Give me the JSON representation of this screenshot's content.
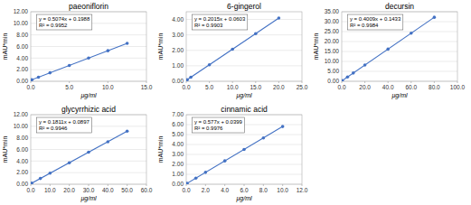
{
  "chart_data": [
    {
      "type": "scatter",
      "title": "paeoniflorin",
      "x_label": "μg/ml",
      "y_label": "mAU*min",
      "annotations": [
        "y = 0.5074x + 0.1988",
        "R² = 0.9952"
      ],
      "xlim": [
        0.0,
        15.0
      ],
      "ylim": [
        0.0,
        12.0
      ],
      "xticks": [
        {
          "value": 0.0,
          "label": "0.0"
        },
        {
          "value": 5.0,
          "label": "5.0"
        },
        {
          "value": 10.0,
          "label": "10.0"
        },
        {
          "value": 15.0,
          "label": "15.0"
        }
      ],
      "yticks": [
        {
          "value": 0.0,
          "label": "0.00"
        },
        {
          "value": 2.0,
          "label": "2.00"
        },
        {
          "value": 4.0,
          "label": "4.00"
        },
        {
          "value": 6.0,
          "label": "6.00"
        },
        {
          "value": 8.0,
          "label": "8.00"
        },
        {
          "value": 10.0,
          "label": "10.00"
        },
        {
          "value": 12.0,
          "label": "12.00"
        }
      ],
      "grid": true,
      "series": [
        {
          "type": "scatter",
          "marker": "circle",
          "color": "#4472c4",
          "x": [
            0.15,
            1.0,
            2.5,
            5.0,
            7.5,
            10.0,
            12.5
          ],
          "values": [
            0.27491,
            0.7062,
            1.4673,
            2.7358,
            4.0043,
            5.2728,
            6.5413
          ]
        },
        {
          "type": "line",
          "line_style": "solid",
          "color": "#4472c4",
          "x": [
            0.0,
            12.5
          ],
          "values": [
            0.1988,
            6.5413
          ]
        }
      ]
    },
    {
      "type": "scatter",
      "title": "6-gingerol",
      "x_label": "μg/ml",
      "y_label": "mAU*min",
      "annotations": [
        "y = 0.2015x + 0.0603",
        "R² = 0.9903"
      ],
      "xlim": [
        0.0,
        25.0
      ],
      "ylim": [
        0.0,
        4.5
      ],
      "xticks": [
        {
          "value": 0.0,
          "label": "0.0"
        },
        {
          "value": 5.0,
          "label": "5.0"
        },
        {
          "value": 10.0,
          "label": "10.0"
        },
        {
          "value": 15.0,
          "label": "15.0"
        },
        {
          "value": 20.0,
          "label": "20.0"
        },
        {
          "value": 25.0,
          "label": "25.0"
        }
      ],
      "yticks": [
        {
          "value": 0.0,
          "label": "0.00"
        },
        {
          "value": 1.0,
          "label": "1.00"
        },
        {
          "value": 2.0,
          "label": "2.00"
        },
        {
          "value": 3.0,
          "label": "3.00"
        },
        {
          "value": 4.0,
          "label": "4.00"
        }
      ],
      "grid": true,
      "series": [
        {
          "type": "scatter",
          "marker": "circle",
          "color": "#4472c4",
          "x": [
            0.2,
            1.0,
            5.0,
            10.0,
            15.0,
            20.0
          ],
          "values": [
            0.1006,
            0.2618,
            1.0678,
            2.0753,
            3.0828,
            4.0903
          ]
        },
        {
          "type": "line",
          "line_style": "solid",
          "color": "#4472c4",
          "x": [
            0.0,
            20.0
          ],
          "values": [
            0.0603,
            4.0903
          ]
        }
      ]
    },
    {
      "type": "scatter",
      "title": "decursin",
      "x_label": "μg/ml",
      "y_label": "mAU*min",
      "annotations": [
        "y = 0.4009x + 0.1433",
        "R² = 0.9984"
      ],
      "xlim": [
        0.0,
        100.0
      ],
      "ylim": [
        0.0,
        35.0
      ],
      "xticks": [
        {
          "value": 0.0,
          "label": "0.0"
        },
        {
          "value": 20.0,
          "label": "20.0"
        },
        {
          "value": 40.0,
          "label": "40.0"
        },
        {
          "value": 60.0,
          "label": "60.0"
        },
        {
          "value": 80.0,
          "label": "80.0"
        },
        {
          "value": 100.0,
          "label": "100.0"
        }
      ],
      "yticks": [
        {
          "value": 0.0,
          "label": "0.00"
        },
        {
          "value": 5.0,
          "label": "5.00"
        },
        {
          "value": 10.0,
          "label": "10.00"
        },
        {
          "value": 15.0,
          "label": "15.00"
        },
        {
          "value": 20.0,
          "label": "20.00"
        },
        {
          "value": 25.0,
          "label": "25.00"
        },
        {
          "value": 30.0,
          "label": "30.00"
        },
        {
          "value": 35.0,
          "label": "35.00"
        }
      ],
      "grid": true,
      "series": [
        {
          "type": "scatter",
          "marker": "circle",
          "color": "#4472c4",
          "x": [
            0.5,
            5.0,
            10.0,
            20.0,
            40.0,
            60.0,
            80.0
          ],
          "values": [
            0.34375,
            2.1478,
            4.1523,
            8.1613,
            16.1793,
            24.1973,
            32.2153
          ]
        },
        {
          "type": "line",
          "line_style": "solid",
          "color": "#4472c4",
          "x": [
            0.0,
            80.0
          ],
          "values": [
            0.1433,
            32.2153
          ]
        }
      ]
    },
    {
      "type": "scatter",
      "title": "glycyrrhizic acid",
      "x_label": "μg/ml",
      "y_label": "mAU*min",
      "annotations": [
        "y = 0.1811x + 0.0897",
        "R² = 0.9946"
      ],
      "xlim": [
        0.0,
        60.0
      ],
      "ylim": [
        0.0,
        12.0
      ],
      "xticks": [
        {
          "value": 0.0,
          "label": "0.0"
        },
        {
          "value": 10.0,
          "label": "10.0"
        },
        {
          "value": 20.0,
          "label": "20.0"
        },
        {
          "value": 30.0,
          "label": "30.0"
        },
        {
          "value": 40.0,
          "label": "40.0"
        },
        {
          "value": 50.0,
          "label": "50.0"
        },
        {
          "value": 60.0,
          "label": "60.0"
        }
      ],
      "yticks": [
        {
          "value": 0.0,
          "label": "0.00"
        },
        {
          "value": 2.0,
          "label": "2.00"
        },
        {
          "value": 4.0,
          "label": "4.00"
        },
        {
          "value": 6.0,
          "label": "6.00"
        },
        {
          "value": 8.0,
          "label": "8.00"
        },
        {
          "value": 10.0,
          "label": "10.00"
        },
        {
          "value": 12.0,
          "label": "12.00"
        }
      ],
      "grid": true,
      "series": [
        {
          "type": "scatter",
          "marker": "circle",
          "color": "#4472c4",
          "x": [
            0.5,
            5.0,
            10.0,
            20.0,
            30.0,
            40.0,
            50.0
          ],
          "values": [
            0.18025,
            0.9952,
            1.9007,
            3.7117,
            5.5227,
            7.3337,
            9.1447
          ]
        },
        {
          "type": "line",
          "line_style": "solid",
          "color": "#4472c4",
          "x": [
            0.0,
            50.0
          ],
          "values": [
            0.0897,
            9.1447
          ]
        }
      ]
    },
    {
      "type": "scatter",
      "title": "cinnamic acid",
      "x_label": "μg/ml",
      "y_label": "mAU*min",
      "annotations": [
        "y = 0.577x + 0.0399",
        "R² = 0.9976"
      ],
      "xlim": [
        0.0,
        12.0
      ],
      "ylim": [
        0.0,
        7.0
      ],
      "xticks": [
        {
          "value": 0.0,
          "label": "0.0"
        },
        {
          "value": 2.0,
          "label": "2.0"
        },
        {
          "value": 4.0,
          "label": "4.0"
        },
        {
          "value": 6.0,
          "label": "6.0"
        },
        {
          "value": 8.0,
          "label": "8.0"
        },
        {
          "value": 10.0,
          "label": "10.0"
        },
        {
          "value": 12.0,
          "label": "12.0"
        }
      ],
      "yticks": [
        {
          "value": 0.0,
          "label": "0.00"
        },
        {
          "value": 1.0,
          "label": "1.00"
        },
        {
          "value": 2.0,
          "label": "2.00"
        },
        {
          "value": 3.0,
          "label": "3.00"
        },
        {
          "value": 4.0,
          "label": "4.00"
        },
        {
          "value": 5.0,
          "label": "5.00"
        },
        {
          "value": 6.0,
          "label": "6.00"
        },
        {
          "value": 7.0,
          "label": "7.00"
        }
      ],
      "grid": true,
      "series": [
        {
          "type": "scatter",
          "marker": "circle",
          "color": "#4472c4",
          "x": [
            0.1,
            1.0,
            2.0,
            4.0,
            6.0,
            8.0,
            10.0
          ],
          "values": [
            0.0976,
            0.6169,
            1.1939,
            2.3479,
            3.5019,
            4.6559,
            5.8099
          ]
        },
        {
          "type": "line",
          "line_style": "solid",
          "color": "#4472c4",
          "x": [
            0.0,
            10.0
          ],
          "values": [
            0.0399,
            5.8099
          ]
        }
      ]
    }
  ]
}
